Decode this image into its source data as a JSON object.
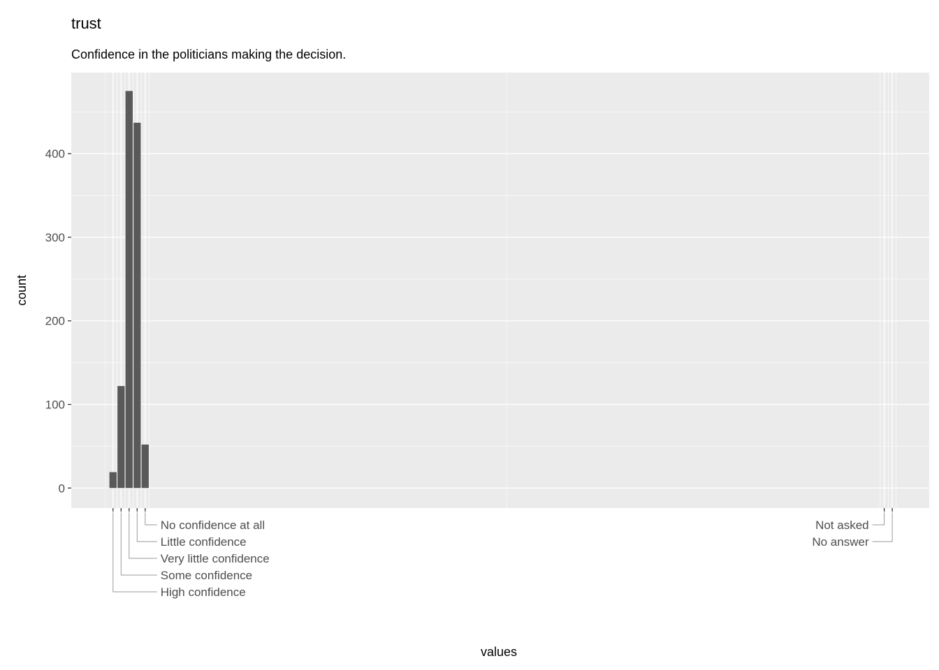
{
  "chart_data": {
    "type": "bar",
    "title": "trust",
    "subtitle": "Confidence in the politicians making the decision.",
    "xlabel": "values",
    "ylabel": "count",
    "x": [
      1,
      2,
      3,
      4,
      5
    ],
    "values": [
      19,
      122,
      475,
      437,
      52
    ],
    "xlim": [
      -4.2,
      102.6
    ],
    "ylim": [
      -24,
      497
    ],
    "yticks": [
      0,
      100,
      200,
      300,
      400
    ],
    "xticks": [
      {
        "value": 1,
        "label": "High\nconfidence"
      },
      {
        "value": 2,
        "label": "Some confidence"
      },
      {
        "value": 3,
        "label": "Very little confidence"
      },
      {
        "value": 4,
        "label": "Little confidence"
      },
      {
        "value": 5,
        "label": "No confidence\nat all"
      },
      {
        "value": 97,
        "label": "Not asked"
      },
      {
        "value": 98,
        "label": "No answer"
      }
    ],
    "grid": true,
    "colors": {
      "panel": "#EBEBEB",
      "bar": "#595959",
      "grid": "#FFFFFF"
    }
  }
}
